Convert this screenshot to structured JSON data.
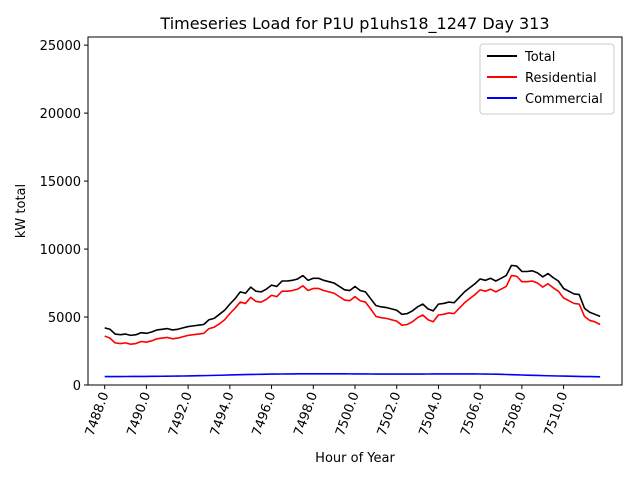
{
  "chart_data": {
    "type": "line",
    "title": "Timeseries Load for P1U p1uhs18_1247  Day 313",
    "xlabel": "Hour of Year",
    "ylabel": "kW total",
    "xlim": [
      7487.2,
      7512.8
    ],
    "ylim": [
      0,
      25600
    ],
    "x_ticks": [
      7488,
      7490,
      7492,
      7494,
      7496,
      7498,
      7500,
      7502,
      7504,
      7506,
      7508,
      7510
    ],
    "x_tick_labels": [
      "7488.0",
      "7490.0",
      "7492.0",
      "7494.0",
      "7496.0",
      "7498.0",
      "7500.0",
      "7502.0",
      "7504.0",
      "7506.0",
      "7508.0",
      "7510.0"
    ],
    "y_ticks": [
      0,
      5000,
      10000,
      15000,
      20000,
      25000
    ],
    "y_tick_labels": [
      "0",
      "5000",
      "10000",
      "15000",
      "20000",
      "25000"
    ],
    "legend_position": "top-right",
    "x_start": 7488.0,
    "x_step": 0.25,
    "series": [
      {
        "name": "Total",
        "color": "#000000",
        "values": [
          4200,
          4100,
          3750,
          3700,
          3750,
          3650,
          3700,
          3850,
          3800,
          3900,
          4050,
          4100,
          4150,
          4050,
          4100,
          4200,
          4300,
          4350,
          4400,
          4450,
          4800,
          4900,
          5200,
          5500,
          5950,
          6350,
          6850,
          6750,
          7200,
          6900,
          6850,
          7050,
          7350,
          7250,
          7650,
          7650,
          7700,
          7800,
          8050,
          7700,
          7850,
          7850,
          7700,
          7600,
          7500,
          7250,
          7000,
          6950,
          7250,
          6950,
          6850,
          6350,
          5850,
          5750,
          5700,
          5600,
          5500,
          5200,
          5250,
          5450,
          5750,
          5950,
          5600,
          5450,
          5950,
          6000,
          6100,
          6050,
          6450,
          6850,
          7150,
          7450,
          7800,
          7700,
          7850,
          7650,
          7850,
          8050,
          8800,
          8750,
          8350,
          8350,
          8400,
          8250,
          7950,
          8200,
          7900,
          7650,
          7100,
          6900,
          6700,
          6650,
          5650,
          5350,
          5200,
          5050
        ]
      },
      {
        "name": "Residential",
        "color": "#ff0000",
        "values": [
          3600,
          3450,
          3100,
          3050,
          3100,
          3000,
          3050,
          3200,
          3150,
          3250,
          3400,
          3450,
          3500,
          3400,
          3450,
          3550,
          3650,
          3700,
          3750,
          3800,
          4150,
          4250,
          4500,
          4800,
          5250,
          5650,
          6100,
          6000,
          6450,
          6150,
          6100,
          6300,
          6600,
          6500,
          6900,
          6900,
          6950,
          7050,
          7300,
          6950,
          7100,
          7100,
          6950,
          6850,
          6750,
          6500,
          6250,
          6200,
          6500,
          6200,
          6100,
          5600,
          5050,
          4950,
          4900,
          4800,
          4700,
          4400,
          4450,
          4650,
          4950,
          5150,
          4800,
          4650,
          5150,
          5200,
          5300,
          5250,
          5650,
          6050,
          6350,
          6650,
          7000,
          6900,
          7050,
          6850,
          7050,
          7250,
          8050,
          8000,
          7600,
          7600,
          7650,
          7500,
          7200,
          7450,
          7150,
          6900,
          6400,
          6200,
          6000,
          5950,
          5050,
          4750,
          4650,
          4450
        ]
      },
      {
        "name": "Commercial",
        "color": "#0000ff",
        "values": [
          620,
          621,
          622,
          623,
          625,
          627,
          629,
          631,
          633,
          636,
          640,
          644,
          648,
          653,
          658,
          663,
          669,
          676,
          683,
          690,
          699,
          708,
          717,
          727,
          737,
          747,
          757,
          766,
          774,
          782,
          789,
          796,
          801,
          806,
          810,
          814,
          817,
          820,
          822,
          823,
          824,
          824,
          824,
          823,
          822,
          821,
          820,
          818,
          816,
          814,
          812,
          810,
          808,
          806,
          804,
          803,
          803,
          803,
          804,
          805,
          807,
          808,
          810,
          811,
          812,
          813,
          814,
          815,
          816,
          816,
          815,
          813,
          810,
          806,
          800,
          792,
          783,
          772,
          760,
          748,
          736,
          724,
          712,
          701,
          690,
          680,
          671,
          662,
          654,
          646,
          638,
          631,
          624,
          617,
          611,
          605
        ]
      }
    ]
  }
}
